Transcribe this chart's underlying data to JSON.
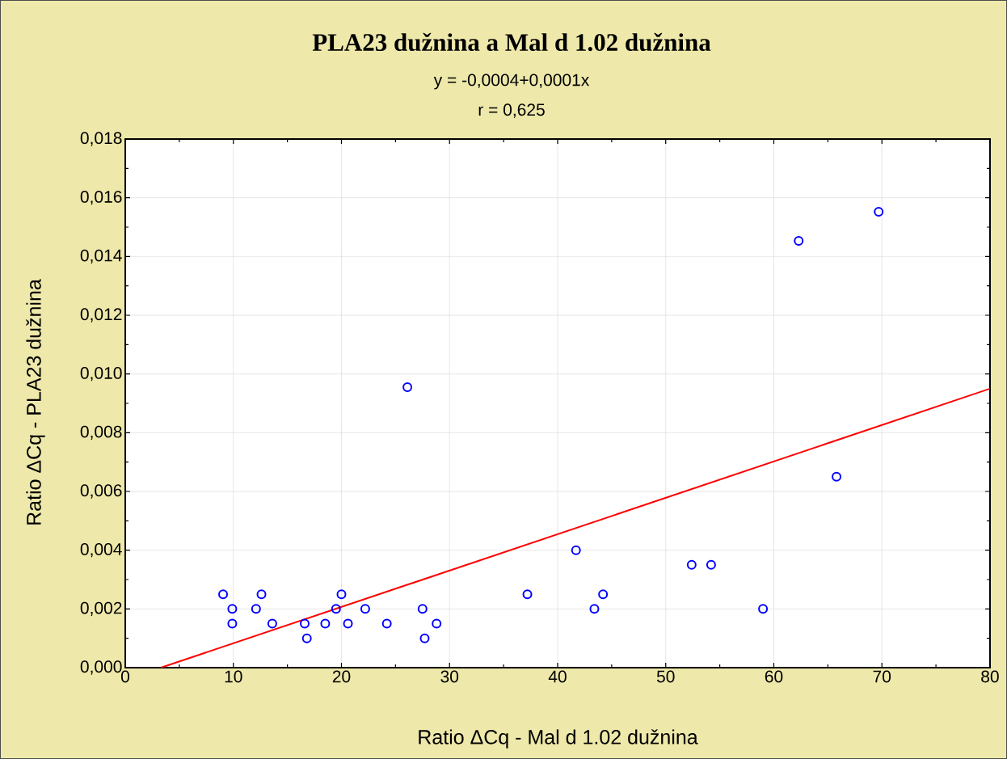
{
  "chart_data": {
    "type": "scatter",
    "title": "PLA23 dužnina a Mal d 1.02 dužnina",
    "annotations": [
      "y = -0,0004+0,0001x",
      "r = 0,625"
    ],
    "xlabel": "Ratio ΔCq - Mal d 1.02 dužnina",
    "ylabel": "Ratio ΔCq - PLA23 dužnina",
    "xlim": [
      0,
      80
    ],
    "xticks": [
      0,
      10,
      20,
      30,
      40,
      50,
      60,
      70,
      80
    ],
    "ylim": [
      0,
      0.018
    ],
    "yticks": [
      {
        "value": 0,
        "label": "0,000"
      },
      {
        "value": 0.002,
        "label": "0,002"
      },
      {
        "value": 0.004,
        "label": "0,004"
      },
      {
        "value": 0.006,
        "label": "0,006"
      },
      {
        "value": 0.008,
        "label": "0,008"
      },
      {
        "value": 0.01,
        "label": "0,010"
      },
      {
        "value": 0.012,
        "label": "0,012"
      },
      {
        "value": 0.014,
        "label": "0,014"
      },
      {
        "value": 0.016,
        "label": "0,016"
      },
      {
        "value": 0.018,
        "label": "0,018"
      }
    ],
    "grid": true,
    "marker": "circle",
    "series": [
      {
        "color": "#0000ff",
        "x": [
          9.05,
          9.9,
          9.9,
          12.1,
          12.6,
          13.6,
          16.6,
          16.8,
          18.5,
          19.5,
          20.0,
          20.6,
          22.2,
          24.2,
          26.1,
          27.5,
          27.7,
          28.8,
          37.2,
          41.7,
          43.4,
          44.2,
          52.4,
          54.2,
          59.0,
          62.3,
          65.8,
          69.7
        ],
        "values": [
          0.0025,
          0.002,
          0.0015,
          0.002,
          0.0025,
          0.0015,
          0.0015,
          0.001,
          0.0015,
          0.002,
          0.0025,
          0.0015,
          0.002,
          0.0015,
          0.00955,
          0.002,
          0.001,
          0.0015,
          0.0025,
          0.004,
          0.002,
          0.0025,
          0.0035,
          0.0035,
          0.002,
          0.01453,
          0.0065,
          0.01552
        ]
      },
      {
        "type": "line",
        "marker": "none",
        "color": "#ff0000",
        "x": [
          3.3,
          80
        ],
        "values": [
          0,
          0.0095
        ]
      }
    ]
  }
}
